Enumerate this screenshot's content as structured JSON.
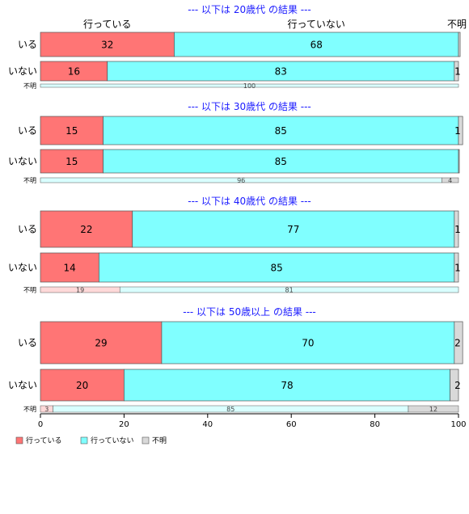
{
  "chart_data": {
    "type": "bar",
    "orientation": "horizontal-stacked-100",
    "colors": {
      "行っている": "#ff7575",
      "行っていない": "#80ffff",
      "不明": "#d9d9d9"
    },
    "light_colors": {
      "行っている": "#ffd9d9",
      "行っていない": "#d9ffff",
      "不明": "#d9d9d9"
    },
    "legend": [
      "行っている",
      "行っていない",
      "不明"
    ],
    "legend_position": "bottom-left",
    "xlim": [
      0,
      100
    ],
    "xticks": [
      0,
      20,
      40,
      60,
      80,
      100
    ],
    "header_labels": [
      "行っている",
      "行っていない",
      "不明"
    ],
    "groups": [
      {
        "title": "--- 以下は 20歳代 の結果 ---",
        "rows": [
          {
            "label": "いる",
            "values": [
              32,
              68,
              0.4
            ],
            "labels": [
              "32",
              "68",
              ""
            ]
          },
          {
            "label": "いない",
            "values": [
              16,
              83,
              1
            ],
            "labels": [
              "16",
              "83",
              "1"
            ]
          },
          {
            "label": "不明",
            "values": [
              0,
              100,
              0
            ],
            "labels": [
              "",
              "100",
              ""
            ]
          }
        ]
      },
      {
        "title": "--- 以下は 30歳代 の結果 ---",
        "rows": [
          {
            "label": "いる",
            "values": [
              15,
              85,
              1
            ],
            "labels": [
              "15",
              "85",
              "1"
            ]
          },
          {
            "label": "いない",
            "values": [
              15,
              85,
              0.2
            ],
            "labels": [
              "15",
              "85",
              ""
            ]
          },
          {
            "label": "不明",
            "values": [
              0,
              96,
              4
            ],
            "labels": [
              "",
              "96",
              "4"
            ]
          }
        ]
      },
      {
        "title": "--- 以下は 40歳代 の結果 ---",
        "rows": [
          {
            "label": "いる",
            "values": [
              22,
              77,
              1
            ],
            "labels": [
              "22",
              "77",
              "1"
            ]
          },
          {
            "label": "いない",
            "values": [
              14,
              85,
              1
            ],
            "labels": [
              "14",
              "85",
              "1"
            ]
          },
          {
            "label": "不明",
            "values": [
              19,
              81,
              0
            ],
            "labels": [
              "19",
              "81",
              ""
            ]
          }
        ]
      },
      {
        "title": "--- 以下は 50歳以上 の結果 ---",
        "rows": [
          {
            "label": "いる",
            "values": [
              29,
              70,
              2
            ],
            "labels": [
              "29",
              "70",
              "2"
            ]
          },
          {
            "label": "いない",
            "values": [
              20,
              78,
              2
            ],
            "labels": [
              "20",
              "78",
              "2"
            ]
          },
          {
            "label": "不明",
            "values": [
              3,
              85,
              12
            ],
            "labels": [
              "3",
              "85",
              "12"
            ]
          }
        ]
      }
    ]
  }
}
